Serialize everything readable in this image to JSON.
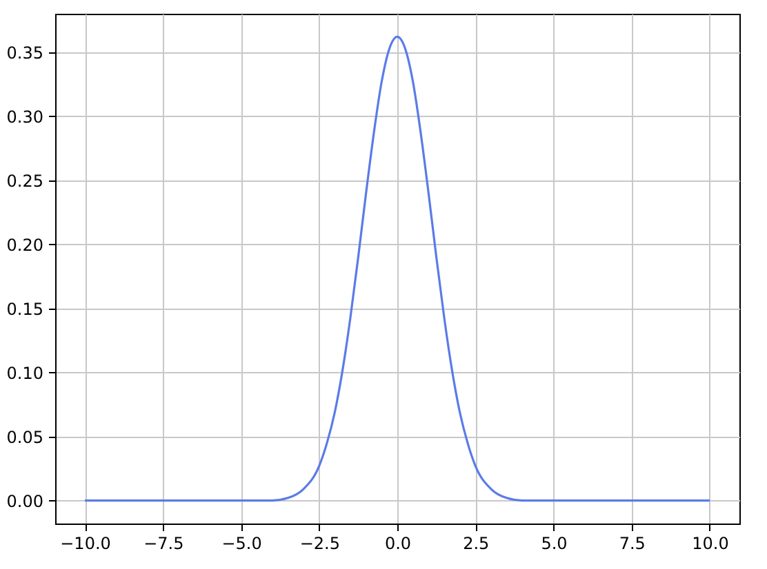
{
  "chart_data": {
    "type": "line",
    "x": [
      -10,
      -5,
      -4,
      -3.5,
      -3,
      -2.5,
      -2.25,
      -2,
      -1.75,
      -1.5,
      -1.25,
      -1,
      -0.75,
      -0.5,
      -0.25,
      0,
      0.25,
      0.5,
      0.75,
      1,
      1.25,
      1.5,
      1.75,
      2,
      2.25,
      2.5,
      3,
      3.5,
      4,
      5,
      10
    ],
    "series": [
      {
        "color": "#5b7be8",
        "values": [
          0,
          0,
          0,
          0.002,
          0.009,
          0.027,
          0.045,
          0.069,
          0.102,
          0.143,
          0.19,
          0.24,
          0.287,
          0.327,
          0.353,
          0.362,
          0.353,
          0.327,
          0.287,
          0.24,
          0.19,
          0.143,
          0.102,
          0.069,
          0.045,
          0.027,
          0.009,
          0.002,
          0,
          0,
          0
        ]
      }
    ],
    "xlim": [
      -10.95,
      10.95
    ],
    "xticks": [
      {
        "value": -10,
        "label": "−10.0"
      },
      {
        "value": -7.5,
        "label": "−7.5"
      },
      {
        "value": -5,
        "label": "−5.0"
      },
      {
        "value": -2.5,
        "label": "−2.5"
      },
      {
        "value": 0,
        "label": "0.0"
      },
      {
        "value": 2.5,
        "label": "2.5"
      },
      {
        "value": 5,
        "label": "5.0"
      },
      {
        "value": 7.5,
        "label": "7.5"
      },
      {
        "value": 10,
        "label": "10.0"
      }
    ],
    "ylim": [
      -0.018,
      0.38
    ],
    "yticks": [
      {
        "value": 0,
        "label": "0.00"
      },
      {
        "value": 0.05,
        "label": "0.05"
      },
      {
        "value": 0.1,
        "label": "0.10"
      },
      {
        "value": 0.15,
        "label": "0.15"
      },
      {
        "value": 0.2,
        "label": "0.20"
      },
      {
        "value": 0.25,
        "label": "0.25"
      },
      {
        "value": 0.3,
        "label": "0.30"
      },
      {
        "value": 0.35,
        "label": "0.35"
      }
    ],
    "grid": true,
    "line_style": "solid"
  }
}
